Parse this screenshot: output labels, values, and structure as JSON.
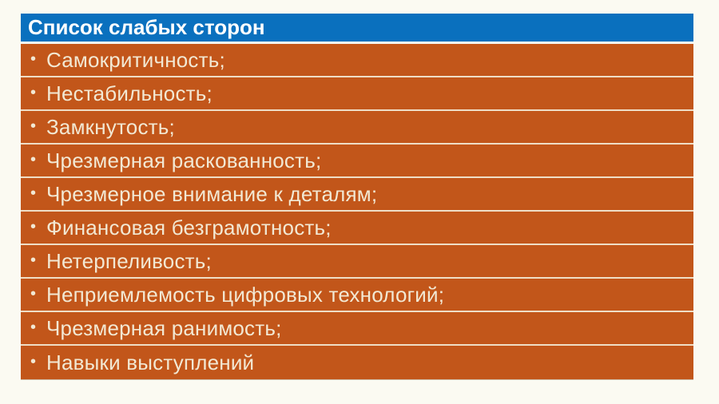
{
  "colors": {
    "page_background": "#FBFAF2",
    "header_background": "#0A70BE",
    "header_text": "#FFFFFF",
    "row_background": "#C2561A",
    "row_text": "#F2E8D3",
    "row_separator": "#EFDEC6",
    "header_gap": "#FBFAF2"
  },
  "list": {
    "title": "Список слабых сторон",
    "bullet_glyph": "•",
    "items": [
      {
        "label": "Самокритичность;"
      },
      {
        "label": "Нестабильность;"
      },
      {
        "label": "Замкнутость;"
      },
      {
        "label": "Чрезмерная раскованность;"
      },
      {
        "label": "Чрезмерное внимание к деталям;"
      },
      {
        "label": "Финансовая безграмотность;"
      },
      {
        "label": "Нетерпеливость;"
      },
      {
        "label": "Неприемлемость цифровых технологий;"
      },
      {
        "label": "Чрезмерная ранимость;"
      },
      {
        "label": "Навыки выступлений"
      }
    ]
  }
}
